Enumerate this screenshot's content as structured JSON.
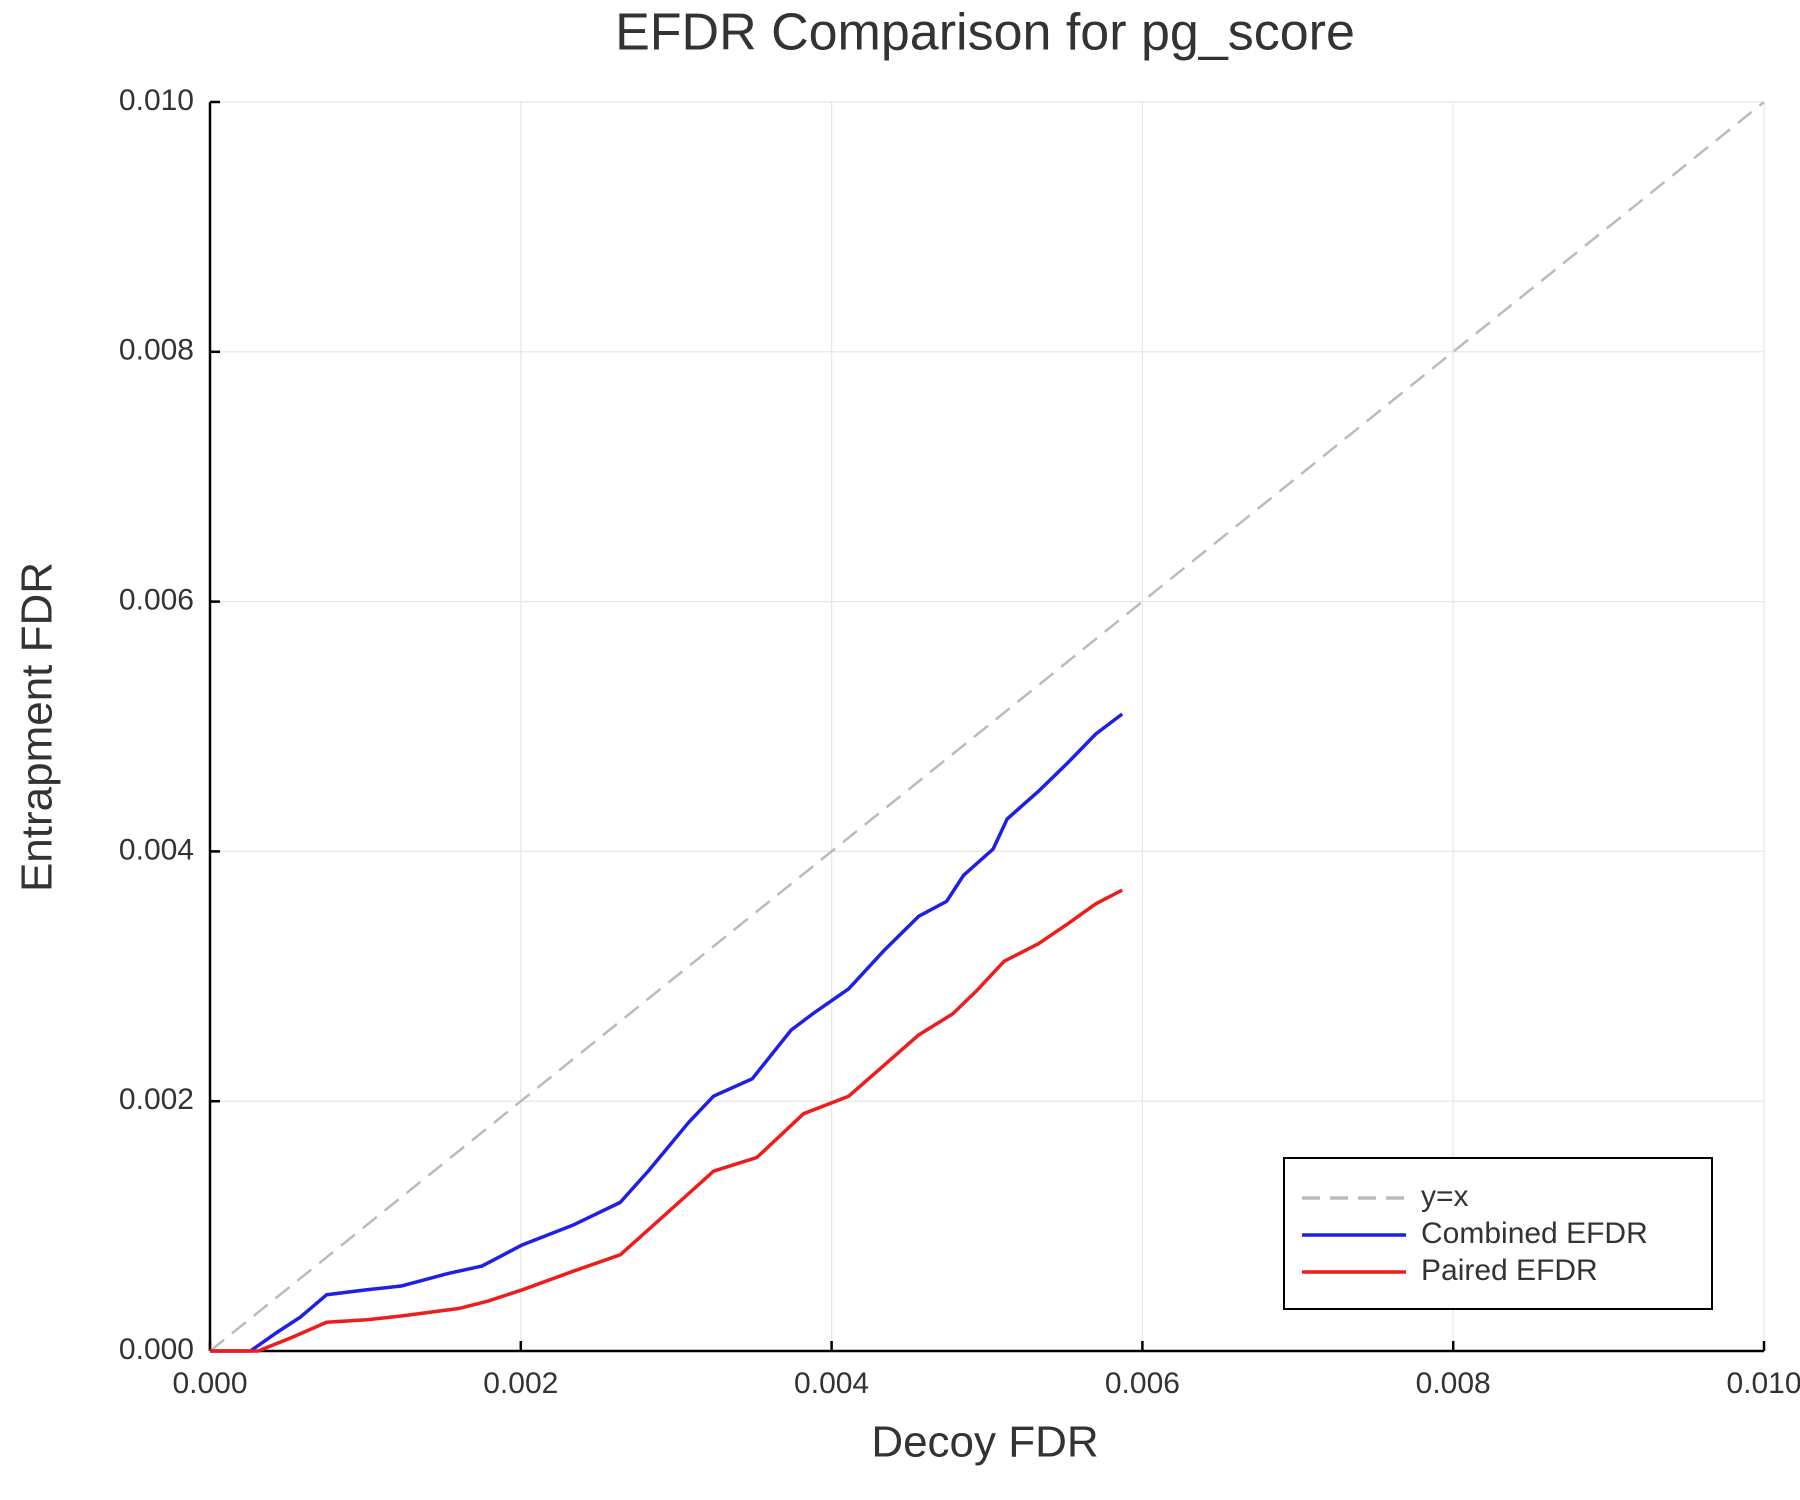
{
  "chart_data": {
    "type": "line",
    "title": "EFDR Comparison for pg_score",
    "x_label": "Decoy FDR",
    "y_label": "Entrapment FDR",
    "xlim": [
      0,
      0.01
    ],
    "ylim": [
      0,
      0.01
    ],
    "xticks": [
      {
        "value": 0,
        "label": "0.000"
      },
      0.002,
      0.004,
      0.006,
      0.008,
      {
        "value": 0.01,
        "label": "0.010"
      }
    ],
    "yticks": [
      {
        "value": 0,
        "label": "0.000"
      },
      0.002,
      0.004,
      0.006,
      0.008,
      {
        "value": 0.01,
        "label": "0.010"
      }
    ],
    "grid": true,
    "legend": "lower right",
    "series": [
      {
        "name": "y=x",
        "color": "#bbbbbb",
        "dashed": true,
        "x": [
          0,
          0.01
        ],
        "values": [
          0,
          0.01
        ]
      },
      {
        "name": "Combined EFDR",
        "color": "#1f1fe6",
        "x": [
          0,
          0.00026,
          0.00042,
          0.00058,
          0.00075,
          0.00101,
          0.00123,
          0.00153,
          0.00175,
          0.00201,
          0.00234,
          0.00264,
          0.00282,
          0.00308,
          0.00324,
          0.00349,
          0.00374,
          0.00389,
          0.00411,
          0.00434,
          0.00456,
          0.00474,
          0.00485,
          0.00504,
          0.00513,
          0.00533,
          0.00552,
          0.0057,
          0.00587
        ],
        "values": [
          0,
          0,
          0.00014,
          0.00027,
          0.00045,
          0.00049,
          0.00052,
          0.00062,
          0.00068,
          0.00085,
          0.00101,
          0.00119,
          0.00144,
          0.00183,
          0.00204,
          0.00218,
          0.00257,
          0.00271,
          0.0029,
          0.00321,
          0.00348,
          0.0036,
          0.00381,
          0.00402,
          0.00426,
          0.00448,
          0.00471,
          0.00494,
          0.0051
        ]
      },
      {
        "name": "Paired EFDR",
        "color": "#ee1c1c",
        "x": [
          0,
          0.00031,
          0.00053,
          0.00075,
          0.00101,
          0.00123,
          0.0016,
          0.00179,
          0.00201,
          0.00234,
          0.00264,
          0.00282,
          0.00308,
          0.00324,
          0.00352,
          0.00382,
          0.00411,
          0.00434,
          0.00456,
          0.00478,
          0.00493,
          0.00511,
          0.00533,
          0.00552,
          0.0057,
          0.00587
        ],
        "values": [
          0,
          0,
          0.00011,
          0.00023,
          0.00025,
          0.00028,
          0.00034,
          0.0004,
          0.00049,
          0.00064,
          0.00077,
          0.00097,
          0.00126,
          0.00144,
          0.00155,
          0.0019,
          0.00204,
          0.00229,
          0.00253,
          0.0027,
          0.00288,
          0.00312,
          0.00326,
          0.00342,
          0.00358,
          0.00369
        ]
      }
    ]
  }
}
